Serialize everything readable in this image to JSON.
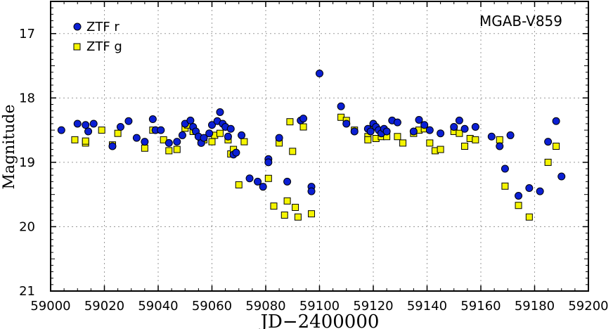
{
  "chart_data": {
    "type": "scatter",
    "title": "MGAB-V859",
    "xlabel": "JD−2400000",
    "ylabel": "Magnitude",
    "xlim": [
      59000,
      59200
    ],
    "ylim": [
      21,
      16.5
    ],
    "y_inverted": true,
    "x_ticks": [
      59000,
      59020,
      59040,
      59060,
      59080,
      59100,
      59120,
      59140,
      59160,
      59180,
      59200
    ],
    "y_ticks": [
      17,
      18,
      19,
      20,
      21
    ],
    "grid": true,
    "legend_position": "top-left",
    "series": [
      {
        "name": "ZTF r",
        "marker": "circle",
        "color": "#0b1fd4",
        "points": [
          [
            59004,
            18.5
          ],
          [
            59010,
            18.4
          ],
          [
            59013,
            18.42
          ],
          [
            59014,
            18.52
          ],
          [
            59016,
            18.4
          ],
          [
            59023,
            18.75
          ],
          [
            59026,
            18.45
          ],
          [
            59029,
            18.36
          ],
          [
            59032,
            18.62
          ],
          [
            59035,
            18.68
          ],
          [
            59038,
            18.33
          ],
          [
            59039,
            18.5
          ],
          [
            59041,
            18.5
          ],
          [
            59044,
            18.7
          ],
          [
            59047,
            18.68
          ],
          [
            59049,
            18.58
          ],
          [
            59050,
            18.4
          ],
          [
            59052,
            18.35
          ],
          [
            59053,
            18.45
          ],
          [
            59054,
            18.52
          ],
          [
            59055,
            18.6
          ],
          [
            59056,
            18.7
          ],
          [
            59057,
            18.62
          ],
          [
            59059,
            18.55
          ],
          [
            59060,
            18.42
          ],
          [
            59062,
            18.36
          ],
          [
            59063,
            18.22
          ],
          [
            59064,
            18.4
          ],
          [
            59065,
            18.45
          ],
          [
            59066,
            18.6
          ],
          [
            59067,
            18.48
          ],
          [
            59068,
            18.88
          ],
          [
            59069,
            18.85
          ],
          [
            59071,
            18.58
          ],
          [
            59074,
            19.25
          ],
          [
            59077,
            19.3
          ],
          [
            59079,
            19.38
          ],
          [
            59081,
            18.95
          ],
          [
            59081,
            19.0
          ],
          [
            59085,
            18.62
          ],
          [
            59088,
            19.3
          ],
          [
            59093,
            18.35
          ],
          [
            59094,
            18.32
          ],
          [
            59097,
            19.38
          ],
          [
            59097,
            19.45
          ],
          [
            59100,
            17.62
          ],
          [
            59108,
            18.13
          ],
          [
            59110,
            18.4
          ],
          [
            59113,
            18.52
          ],
          [
            59118,
            18.48
          ],
          [
            59119,
            18.52
          ],
          [
            59120,
            18.4
          ],
          [
            59121,
            18.45
          ],
          [
            59122,
            18.5
          ],
          [
            59123,
            18.55
          ],
          [
            59124,
            18.48
          ],
          [
            59125,
            18.52
          ],
          [
            59127,
            18.35
          ],
          [
            59129,
            18.38
          ],
          [
            59135,
            18.52
          ],
          [
            59137,
            18.34
          ],
          [
            59139,
            18.42
          ],
          [
            59141,
            18.5
          ],
          [
            59145,
            18.55
          ],
          [
            59150,
            18.45
          ],
          [
            59152,
            18.35
          ],
          [
            59154,
            18.48
          ],
          [
            59158,
            18.45
          ],
          [
            59164,
            18.6
          ],
          [
            59167,
            18.75
          ],
          [
            59169,
            19.1
          ],
          [
            59171,
            18.58
          ],
          [
            59174,
            19.52
          ],
          [
            59178,
            19.4
          ],
          [
            59182,
            19.45
          ],
          [
            59185,
            18.68
          ],
          [
            59188,
            18.36
          ],
          [
            59190,
            19.22
          ]
        ]
      },
      {
        "name": "ZTF g",
        "marker": "square",
        "color": "#f5f500",
        "points": [
          [
            59009,
            18.65
          ],
          [
            59013,
            18.7
          ],
          [
            59013,
            18.67
          ],
          [
            59019,
            18.5
          ],
          [
            59023,
            18.73
          ],
          [
            59025,
            18.55
          ],
          [
            59035,
            18.78
          ],
          [
            59038,
            18.5
          ],
          [
            59042,
            18.65
          ],
          [
            59044,
            18.82
          ],
          [
            59047,
            18.8
          ],
          [
            59050,
            18.47
          ],
          [
            59051,
            18.42
          ],
          [
            59053,
            18.52
          ],
          [
            59056,
            18.68
          ],
          [
            59057,
            18.65
          ],
          [
            59060,
            18.68
          ],
          [
            59061,
            18.58
          ],
          [
            59063,
            18.55
          ],
          [
            59066,
            18.65
          ],
          [
            59067,
            18.87
          ],
          [
            59068,
            18.8
          ],
          [
            59070,
            19.35
          ],
          [
            59072,
            18.68
          ],
          [
            59081,
            19.25
          ],
          [
            59083,
            19.68
          ],
          [
            59085,
            18.7
          ],
          [
            59087,
            19.82
          ],
          [
            59088,
            19.6
          ],
          [
            59089,
            18.37
          ],
          [
            59090,
            18.83
          ],
          [
            59091,
            19.7
          ],
          [
            59092,
            19.85
          ],
          [
            59094,
            18.45
          ],
          [
            59097,
            19.8
          ],
          [
            59108,
            18.3
          ],
          [
            59110,
            18.35
          ],
          [
            59113,
            18.5
          ],
          [
            59118,
            18.6
          ],
          [
            59118,
            18.65
          ],
          [
            59120,
            18.45
          ],
          [
            59121,
            18.63
          ],
          [
            59123,
            18.6
          ],
          [
            59125,
            18.6
          ],
          [
            59129,
            18.6
          ],
          [
            59131,
            18.7
          ],
          [
            59135,
            18.55
          ],
          [
            59137,
            18.5
          ],
          [
            59139,
            18.48
          ],
          [
            59141,
            18.7
          ],
          [
            59143,
            18.82
          ],
          [
            59145,
            18.8
          ],
          [
            59150,
            18.52
          ],
          [
            59152,
            18.55
          ],
          [
            59154,
            18.75
          ],
          [
            59156,
            18.63
          ],
          [
            59158,
            18.65
          ],
          [
            59167,
            18.65
          ],
          [
            59169,
            19.37
          ],
          [
            59174,
            19.67
          ],
          [
            59178,
            19.85
          ],
          [
            59185,
            19.0
          ],
          [
            59188,
            18.75
          ]
        ]
      }
    ]
  }
}
